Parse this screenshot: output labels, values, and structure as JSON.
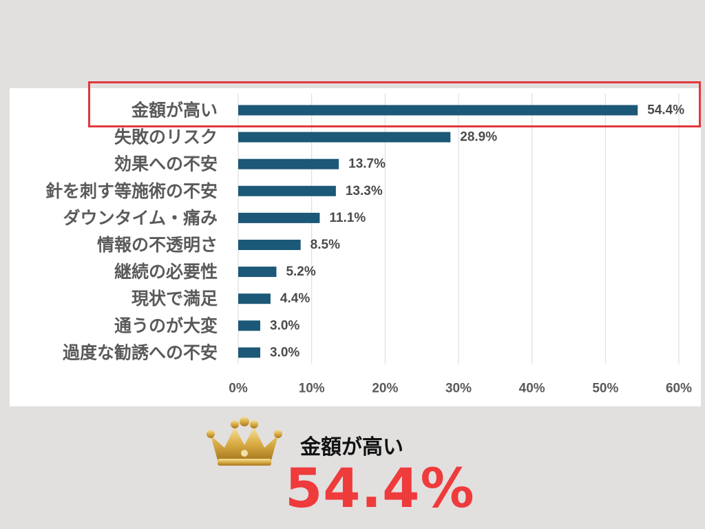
{
  "chart_data": {
    "type": "bar",
    "orientation": "horizontal",
    "categories": [
      "金額が高い",
      "失敗のリスク",
      "効果への不安",
      "針を刺す等施術の不安",
      "ダウンタイム・痛み",
      "情報の不透明さ",
      "継続の必要性",
      "現状で満足",
      "通うのが大変",
      "過度な勧誘への不安"
    ],
    "values": [
      54.4,
      28.9,
      13.7,
      13.3,
      11.1,
      8.5,
      5.2,
      4.4,
      3.0,
      3.0
    ],
    "value_labels": [
      "54.4%",
      "28.9%",
      "13.7%",
      "13.3%",
      "11.1%",
      "8.5%",
      "5.2%",
      "4.4%",
      "3.0%",
      "3.0%"
    ],
    "xlim": [
      0,
      60
    ],
    "x_ticks": [
      "0%",
      "10%",
      "20%",
      "30%",
      "40%",
      "50%",
      "60%"
    ],
    "bar_color": "#1c5877",
    "grid": "vertical",
    "highlight_category": "金額が高い",
    "highlight_color": "#e0383c"
  },
  "summary": {
    "label": "金額が高い",
    "value": "54.4%",
    "value_color": "#ef3b3b"
  },
  "icons": {
    "crown": "crown-icon"
  }
}
